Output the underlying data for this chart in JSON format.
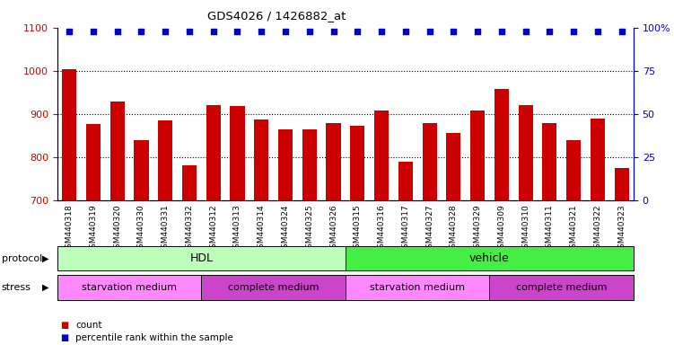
{
  "title": "GDS4026 / 1426882_at",
  "categories": [
    "GSM440318",
    "GSM440319",
    "GSM440320",
    "GSM440330",
    "GSM440331",
    "GSM440332",
    "GSM440312",
    "GSM440313",
    "GSM440314",
    "GSM440324",
    "GSM440325",
    "GSM440326",
    "GSM440315",
    "GSM440316",
    "GSM440317",
    "GSM440327",
    "GSM440328",
    "GSM440329",
    "GSM440309",
    "GSM440310",
    "GSM440311",
    "GSM440321",
    "GSM440322",
    "GSM440323"
  ],
  "bar_values": [
    1003,
    876,
    929,
    838,
    884,
    780,
    921,
    918,
    886,
    864,
    863,
    879,
    872,
    908,
    790,
    878,
    856,
    908,
    958,
    921,
    879,
    838,
    889,
    775
  ],
  "percentile_values": [
    98,
    98,
    98,
    98,
    98,
    98,
    98,
    98,
    98,
    98,
    98,
    98,
    98,
    98,
    98,
    98,
    98,
    98,
    98,
    98,
    98,
    98,
    98,
    98
  ],
  "bar_color": "#cc0000",
  "percentile_color": "#0000cc",
  "ylim_left": [
    700,
    1100
  ],
  "ylim_right": [
    0,
    100
  ],
  "yticks_left": [
    700,
    800,
    900,
    1000,
    1100
  ],
  "yticks_right": [
    0,
    25,
    50,
    75,
    100
  ],
  "right_tick_labels": [
    "0",
    "25",
    "50",
    "75",
    "100%"
  ],
  "grid_lines": [
    800,
    900,
    1000
  ],
  "protocol_groups": [
    {
      "label": "HDL",
      "start": 0,
      "end": 12,
      "color": "#bbffbb"
    },
    {
      "label": "vehicle",
      "start": 12,
      "end": 24,
      "color": "#44ee44"
    }
  ],
  "stress_groups": [
    {
      "label": "starvation medium",
      "start": 0,
      "end": 6,
      "color": "#ff88ff"
    },
    {
      "label": "complete medium",
      "start": 6,
      "end": 12,
      "color": "#cc44cc"
    },
    {
      "label": "starvation medium",
      "start": 12,
      "end": 18,
      "color": "#ff88ff"
    },
    {
      "label": "complete medium",
      "start": 18,
      "end": 24,
      "color": "#cc44cc"
    }
  ],
  "protocol_label": "protocol",
  "stress_label": "stress",
  "legend_count_label": "count",
  "legend_percentile_label": "percentile rank within the sample",
  "background_color": "#ffffff"
}
